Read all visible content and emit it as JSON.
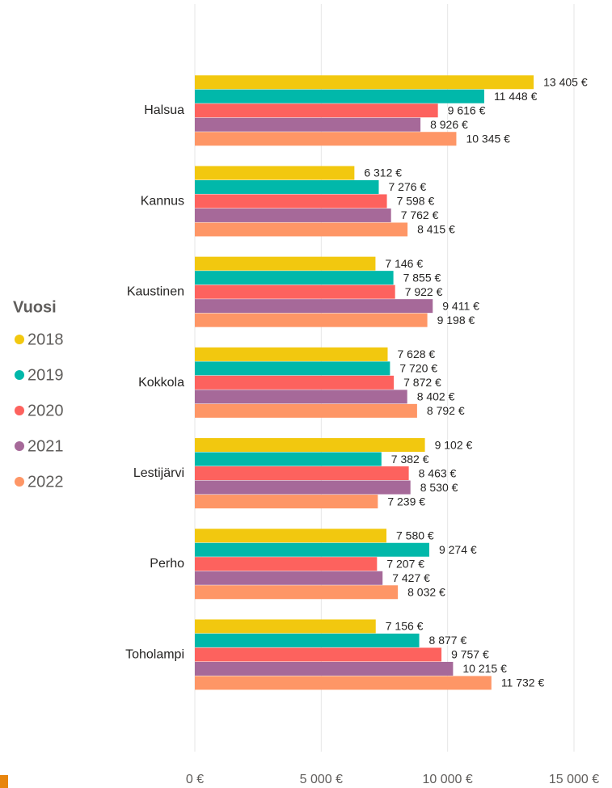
{
  "chart_data": {
    "type": "hbar",
    "legend_title": "Vuosi",
    "legend": "left",
    "grid": true,
    "categories": [
      "Halsua",
      "Kannus",
      "Kaustinen",
      "Kokkola",
      "Lestijärvi",
      "Perho",
      "Toholampi"
    ],
    "series": [
      {
        "name": "2018",
        "color": "#F2C80F",
        "values": [
          13405,
          6312,
          7146,
          7628,
          9102,
          7580,
          7156
        ],
        "value_labels": [
          "13 405 €",
          "6 312 €",
          "7 146 €",
          "7 628 €",
          "9 102 €",
          "7 580 €",
          "7 156 €"
        ]
      },
      {
        "name": "2019",
        "color": "#01B8AA",
        "values": [
          11448,
          7276,
          7855,
          7720,
          7382,
          9274,
          8877
        ],
        "value_labels": [
          "11 448 €",
          "7 276 €",
          "7 855 €",
          "7 720 €",
          "7 382 €",
          "9 274 €",
          "8 877 €"
        ]
      },
      {
        "name": "2020",
        "color": "#FD625E",
        "values": [
          9616,
          7598,
          7922,
          7872,
          8463,
          7207,
          9757
        ],
        "value_labels": [
          "9 616 €",
          "7 598 €",
          "7 922 €",
          "7 872 €",
          "8 463 €",
          "7 207 €",
          "9 757 €"
        ]
      },
      {
        "name": "2021",
        "color": "#A66999",
        "values": [
          8926,
          7762,
          9411,
          8402,
          8530,
          7427,
          10215
        ],
        "value_labels": [
          "8 926 €",
          "7 762 €",
          "9 411 €",
          "8 402 €",
          "8 530 €",
          "7 427 €",
          "10 215 €"
        ]
      },
      {
        "name": "2022",
        "color": "#FE9666",
        "values": [
          10345,
          8415,
          9198,
          8792,
          7239,
          8032,
          11732
        ],
        "value_labels": [
          "10 345 €",
          "8 415 €",
          "9 198 €",
          "8 792 €",
          "7 239 €",
          "8 032 €",
          "11 732 €"
        ]
      }
    ],
    "xlim": [
      0,
      15000
    ],
    "xticks": [
      {
        "value": 0,
        "label": "0 €"
      },
      {
        "value": 5000,
        "label": "5 000 €"
      },
      {
        "value": 10000,
        "label": "10 000 €"
      },
      {
        "value": 15000,
        "label": "15 000 €"
      }
    ]
  }
}
